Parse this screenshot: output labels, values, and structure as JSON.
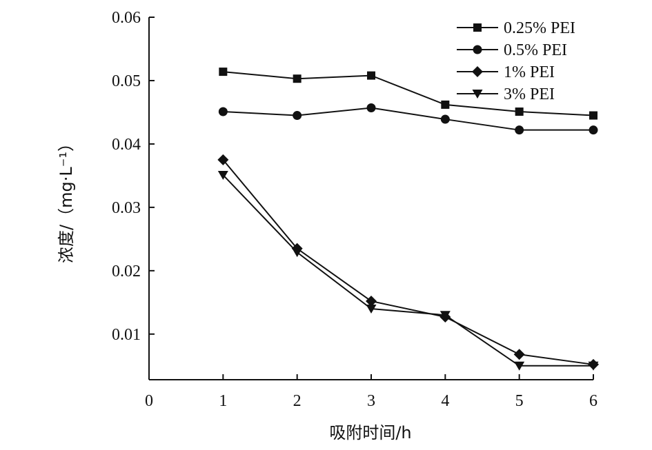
{
  "chart_data": {
    "type": "line",
    "title": "",
    "xlabel": "吸附时间/h",
    "ylabel": "浓度/（mg·L⁻¹）",
    "x": [
      1,
      2,
      3,
      4,
      5,
      6
    ],
    "xlim": [
      0,
      6
    ],
    "ylim": [
      0.0028,
      0.06
    ],
    "xticks": [
      0,
      1,
      2,
      3,
      4,
      5,
      6
    ],
    "yticks": [
      0.01,
      0.02,
      0.03,
      0.04,
      0.05,
      0.06
    ],
    "xtick_labels": [
      "0",
      "1",
      "2",
      "3",
      "4",
      "5",
      "6"
    ],
    "ytick_labels": [
      "0.01",
      "0.02",
      "0.03",
      "0.04",
      "0.05",
      "0.06"
    ],
    "grid": false,
    "legend_position": "top-right",
    "series": [
      {
        "name": "0.25% PEI",
        "marker": "square",
        "values": [
          0.0514,
          0.0503,
          0.0508,
          0.0462,
          0.0451,
          0.0445
        ]
      },
      {
        "name": "0.5% PEI",
        "marker": "circle",
        "values": [
          0.0451,
          0.0445,
          0.0457,
          0.0439,
          0.0422,
          0.0422
        ]
      },
      {
        "name": "1% PEI",
        "marker": "diamond",
        "values": [
          0.0375,
          0.0235,
          0.0152,
          0.0127,
          0.0068,
          0.0052
        ]
      },
      {
        "name": "3% PEI",
        "marker": "triangle-down",
        "values": [
          0.0351,
          0.0229,
          0.014,
          0.013,
          0.005,
          0.005
        ]
      }
    ]
  }
}
